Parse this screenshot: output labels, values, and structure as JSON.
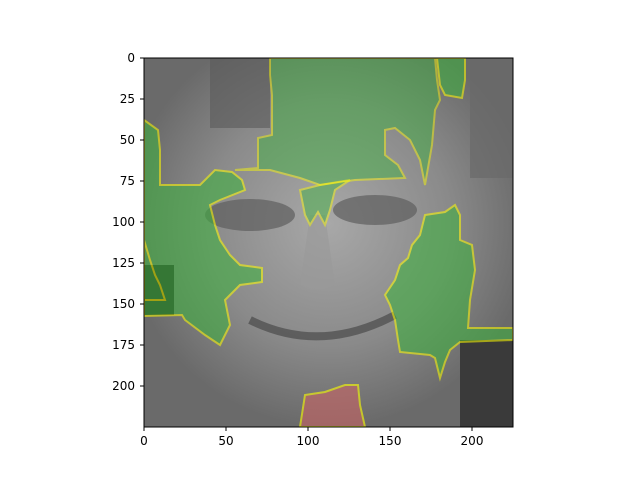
{
  "figure": {
    "image_description": "grayscale face with green and red explanation overlay regions outlined in yellow",
    "overlay_colors": {
      "positive": "#3cb43c",
      "negative": "#c86464",
      "boundary": "#ffff00"
    },
    "axes": {
      "x_ticks": [
        "0",
        "50",
        "100",
        "150",
        "200"
      ],
      "y_ticks": [
        "0",
        "25",
        "50",
        "75",
        "100",
        "125",
        "150",
        "175",
        "200"
      ]
    }
  }
}
